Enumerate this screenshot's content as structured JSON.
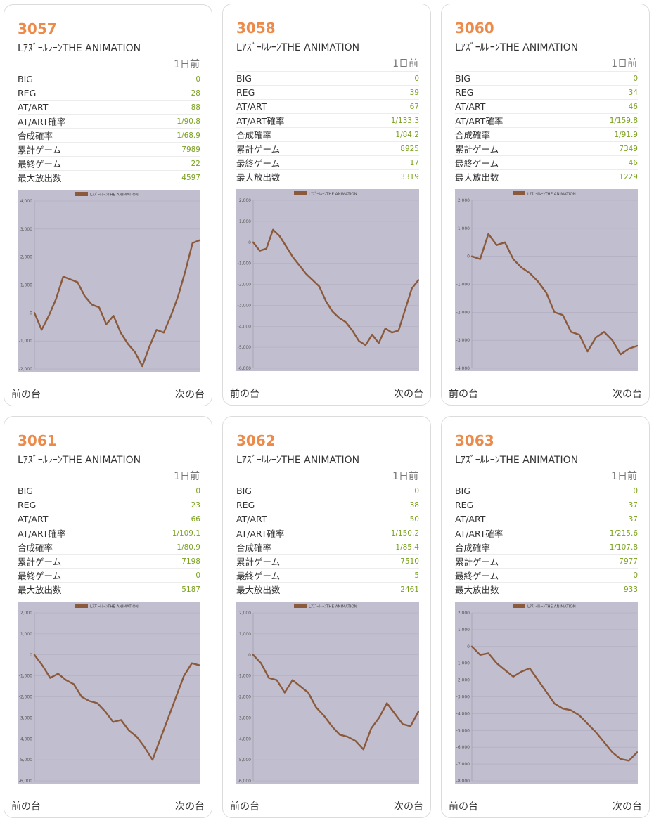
{
  "day_label": "1日前",
  "prev_label": "前の台",
  "next_label": "次の台",
  "stat_labels": [
    "BIG",
    "REG",
    "AT/ART",
    "AT/ART確率",
    "合成確率",
    "累計ゲーム",
    "最終ゲーム",
    "最大放出数"
  ],
  "colors": {
    "accent": "#ec8a4a",
    "value": "#7aa21e",
    "chart_bg": "#c1bfcf",
    "line": "#8b5a3c"
  },
  "machines": [
    {
      "number": "3057",
      "name": "LｱｽﾞｰﾙﾚｰﾝTHE ANIMATION",
      "stats": [
        "0",
        "28",
        "88",
        "1/90.8",
        "1/68.9",
        "7989",
        "22",
        "4597"
      ],
      "chart_data": {
        "type": "line",
        "series": [
          {
            "name": "LｱｽﾞｰﾙﾚｰﾝTHE ANIMATION",
            "values": [
              0,
              -600,
              -100,
              500,
              1300,
              1200,
              1100,
              600,
              300,
              200,
              -400,
              -100,
              -700,
              -1100,
              -1400,
              -1900,
              -1200,
              -600,
              -700,
              -100,
              600,
              1500,
              2500,
              2600
            ]
          }
        ],
        "ylim": [
          -2000,
          4000
        ],
        "ytick_labels": [
          "4,000",
          "3,000",
          "2,000",
          "1,000",
          "0",
          "-1,000",
          "-2,000"
        ]
      }
    },
    {
      "number": "3058",
      "name": "LｱｽﾞｰﾙﾚｰﾝTHE ANIMATION",
      "stats": [
        "0",
        "39",
        "67",
        "1/133.3",
        "1/84.2",
        "8925",
        "17",
        "3319"
      ],
      "chart_data": {
        "type": "line",
        "series": [
          {
            "name": "LｱｽﾞｰﾙﾚｰﾝTHE ANIMATION",
            "values": [
              0,
              -400,
              -300,
              600,
              300,
              -200,
              -700,
              -1100,
              -1500,
              -1800,
              -2100,
              -2800,
              -3300,
              -3600,
              -3800,
              -4200,
              -4700,
              -4900,
              -4400,
              -4800,
              -4100,
              -4300,
              -4200,
              -3200,
              -2200,
              -1800
            ]
          }
        ],
        "ylim": [
          -6000,
          2000
        ],
        "ytick_labels": [
          "2,000",
          "1,000",
          "0",
          "-1,000",
          "-2,000",
          "-3,000",
          "-4,000",
          "-5,000",
          "-6,000"
        ]
      }
    },
    {
      "number": "3060",
      "name": "LｱｽﾞｰﾙﾚｰﾝTHE ANIMATION",
      "stats": [
        "0",
        "34",
        "46",
        "1/159.8",
        "1/91.9",
        "7349",
        "46",
        "1229"
      ],
      "chart_data": {
        "type": "line",
        "series": [
          {
            "name": "LｱｽﾞｰﾙﾚｰﾝTHE ANIMATION",
            "values": [
              0,
              -100,
              800,
              400,
              500,
              -100,
              -400,
              -600,
              -900,
              -1300,
              -2000,
              -2100,
              -2700,
              -2800,
              -3400,
              -2900,
              -2700,
              -3000,
              -3500,
              -3300,
              -3200
            ]
          }
        ],
        "ylim": [
          -4000,
          2000
        ],
        "ytick_labels": [
          "2,000",
          "1,000",
          "0",
          "-1,000",
          "-2,000",
          "-3,000",
          "-4,000"
        ]
      }
    },
    {
      "number": "3061",
      "name": "LｱｽﾞｰﾙﾚｰﾝTHE ANIMATION",
      "stats": [
        "0",
        "23",
        "66",
        "1/109.1",
        "1/80.9",
        "7198",
        "0",
        "5187"
      ],
      "chart_data": {
        "type": "line",
        "series": [
          {
            "name": "LｱｽﾞｰﾙﾚｰﾝTHE ANIMATION",
            "values": [
              0,
              -500,
              -1100,
              -900,
              -1200,
              -1400,
              -2000,
              -2200,
              -2300,
              -2700,
              -3200,
              -3100,
              -3600,
              -3900,
              -4400,
              -5000,
              -4000,
              -3000,
              -2000,
              -1000,
              -400,
              -500
            ]
          }
        ],
        "ylim": [
          -6000,
          2000
        ],
        "ytick_labels": [
          "2,000",
          "1,000",
          "0",
          "-1,000",
          "-2,000",
          "-3,000",
          "-4,000",
          "-5,000",
          "-6,000"
        ]
      }
    },
    {
      "number": "3062",
      "name": "LｱｽﾞｰﾙﾚｰﾝTHE ANIMATION",
      "stats": [
        "0",
        "38",
        "50",
        "1/150.2",
        "1/85.4",
        "7510",
        "5",
        "2461"
      ],
      "chart_data": {
        "type": "line",
        "series": [
          {
            "name": "LｱｽﾞｰﾙﾚｰﾝTHE ANIMATION",
            "values": [
              0,
              -400,
              -1100,
              -1200,
              -1800,
              -1200,
              -1500,
              -1800,
              -2500,
              -2900,
              -3400,
              -3800,
              -3900,
              -4100,
              -4500,
              -3500,
              -3000,
              -2300,
              -2800,
              -3300,
              -3400,
              -2700
            ]
          }
        ],
        "ylim": [
          -6000,
          2000
        ],
        "ytick_labels": [
          "2,000",
          "1,000",
          "0",
          "-1,000",
          "-2,000",
          "-3,000",
          "-4,000",
          "-5,000",
          "-6,000"
        ]
      }
    },
    {
      "number": "3063",
      "name": "LｱｽﾞｰﾙﾚｰﾝTHE ANIMATION",
      "stats": [
        "0",
        "37",
        "37",
        "1/215.6",
        "1/107.8",
        "7977",
        "0",
        "933"
      ],
      "chart_data": {
        "type": "line",
        "series": [
          {
            "name": "LｱｽﾞｰﾙﾚｰﾝTHE ANIMATION",
            "values": [
              0,
              -500,
              -400,
              -1000,
              -1400,
              -1800,
              -1500,
              -1300,
              -2000,
              -2700,
              -3400,
              -3700,
              -3800,
              -4100,
              -4600,
              -5100,
              -5700,
              -6300,
              -6700,
              -6800,
              -6300
            ]
          }
        ],
        "ylim": [
          -8000,
          2000
        ],
        "ytick_labels": [
          "2,000",
          "1,000",
          "0",
          "-1,000",
          "-2,000",
          "-3,000",
          "-4,000",
          "-5,000",
          "-6,000",
          "-7,000",
          "-8,000"
        ]
      }
    }
  ]
}
